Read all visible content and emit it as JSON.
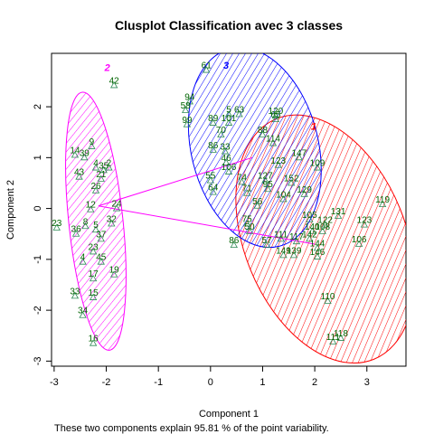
{
  "chart_data": {
    "type": "scatter",
    "title": "Clusplot Classification avec 3 classes",
    "xlabel": "Component 1",
    "ylabel": "Component 2",
    "footnote": "These two components explain 95.81 % of the point variability.",
    "xlim": [
      -3.05,
      3.75
    ],
    "ylim": [
      -3.1,
      3.05
    ],
    "x_ticks": [
      "-3",
      "-2",
      "-1",
      "0",
      "1",
      "2",
      "3"
    ],
    "y_ticks": [
      "-3",
      "-2",
      "-1",
      "0",
      "1",
      "2"
    ],
    "clusters": [
      {
        "label": "1",
        "color": "#ff0000",
        "cx": 2.2,
        "cy": -0.6,
        "rx": 1.55,
        "ry": 2.55,
        "angle": -22,
        "label_x": 1.98,
        "label_y": 1.55
      },
      {
        "label": "2",
        "color": "#ff00ff",
        "cx": -2.2,
        "cy": -0.25,
        "rx": 0.52,
        "ry": 2.55,
        "angle": -6,
        "label_x": -1.98,
        "label_y": 2.7
      },
      {
        "label": "3",
        "color": "#0000ff",
        "cx": 0.85,
        "cy": 1.2,
        "rx": 1.22,
        "ry": 2.0,
        "angle": -14,
        "label_x": 0.3,
        "label_y": 2.75
      }
    ],
    "centers": [
      {
        "x": 2.0,
        "y": -0.7
      },
      {
        "x": -2.15,
        "y": 0.05
      },
      {
        "x": 0.8,
        "y": 1.0
      }
    ],
    "points": [
      {
        "label": "61",
        "x": -0.08,
        "y": 2.72,
        "cluster": 3
      },
      {
        "label": "42",
        "x": -1.85,
        "y": 2.42,
        "cluster": 2
      },
      {
        "label": "94",
        "x": -0.4,
        "y": 2.1,
        "cluster": 3
      },
      {
        "label": "58",
        "x": -0.48,
        "y": 1.93,
        "cluster": 3
      },
      {
        "label": "5",
        "x": 0.35,
        "y": 1.85,
        "cluster": 3
      },
      {
        "label": "63",
        "x": 0.55,
        "y": 1.85,
        "cluster": 3
      },
      {
        "label": "120",
        "x": 1.25,
        "y": 1.82,
        "cluster": 3
      },
      {
        "label": "65",
        "x": 1.25,
        "y": 1.75,
        "cluster": 3
      },
      {
        "label": "99",
        "x": -0.45,
        "y": 1.65,
        "cluster": 3
      },
      {
        "label": "89",
        "x": 0.05,
        "y": 1.68,
        "cluster": 3
      },
      {
        "label": "101",
        "x": 0.35,
        "y": 1.68,
        "cluster": 3
      },
      {
        "label": "88",
        "x": 1.0,
        "y": 1.45,
        "cluster": 3
      },
      {
        "label": "70",
        "x": 0.2,
        "y": 1.45,
        "cluster": 3
      },
      {
        "label": "114",
        "x": 1.2,
        "y": 1.28,
        "cluster": 3
      },
      {
        "label": "9",
        "x": -2.28,
        "y": 1.22,
        "cluster": 2
      },
      {
        "label": "86",
        "x": 0.05,
        "y": 1.15,
        "cluster": 3
      },
      {
        "label": "33",
        "x": 0.28,
        "y": 1.12,
        "cluster": 3
      },
      {
        "label": "14",
        "x": -2.6,
        "y": 1.05,
        "cluster": 2
      },
      {
        "label": "39",
        "x": -2.42,
        "y": 1.0,
        "cluster": 2
      },
      {
        "label": "147",
        "x": 1.7,
        "y": 1.0,
        "cluster": 3
      },
      {
        "label": "46",
        "x": 0.3,
        "y": 0.9,
        "cluster": 3
      },
      {
        "label": "123",
        "x": 1.3,
        "y": 0.85,
        "cluster": 3
      },
      {
        "label": "109",
        "x": 2.05,
        "y": 0.8,
        "cluster": 1
      },
      {
        "label": "4",
        "x": -2.2,
        "y": 0.8,
        "cluster": 2
      },
      {
        "label": "2",
        "x": -1.95,
        "y": 0.8,
        "cluster": 2
      },
      {
        "label": "106",
        "x": 0.35,
        "y": 0.72,
        "cluster": 3
      },
      {
        "label": "35",
        "x": -2.05,
        "y": 0.75,
        "cluster": 2
      },
      {
        "label": "43",
        "x": -2.52,
        "y": 0.62,
        "cluster": 2
      },
      {
        "label": "21",
        "x": -2.1,
        "y": 0.58,
        "cluster": 2
      },
      {
        "label": "55",
        "x": 0.0,
        "y": 0.55,
        "cluster": 3
      },
      {
        "label": "74",
        "x": 0.6,
        "y": 0.52,
        "cluster": 3
      },
      {
        "label": "152",
        "x": 1.55,
        "y": 0.5,
        "cluster": 3
      },
      {
        "label": "127",
        "x": 1.05,
        "y": 0.55,
        "cluster": 3
      },
      {
        "label": "26",
        "x": -2.2,
        "y": 0.35,
        "cluster": 2
      },
      {
        "label": "64",
        "x": 0.05,
        "y": 0.32,
        "cluster": 3
      },
      {
        "label": "95",
        "x": 1.1,
        "y": 0.38,
        "cluster": 3
      },
      {
        "label": "129",
        "x": 1.8,
        "y": 0.28,
        "cluster": 3
      },
      {
        "label": "71",
        "x": 0.7,
        "y": 0.3,
        "cluster": 3
      },
      {
        "label": "104",
        "x": 1.4,
        "y": 0.18,
        "cluster": 3
      },
      {
        "label": "119",
        "x": 3.3,
        "y": 0.08,
        "cluster": 1
      },
      {
        "label": "24",
        "x": -1.8,
        "y": 0.0,
        "cluster": 2
      },
      {
        "label": "12",
        "x": -2.3,
        "y": -0.02,
        "cluster": 2
      },
      {
        "label": "56",
        "x": 0.9,
        "y": 0.05,
        "cluster": 3
      },
      {
        "label": "131",
        "x": 2.45,
        "y": -0.15,
        "cluster": 1
      },
      {
        "label": "105",
        "x": 1.9,
        "y": -0.22,
        "cluster": 1
      },
      {
        "label": "122",
        "x": 2.2,
        "y": -0.32,
        "cluster": 1
      },
      {
        "label": "123",
        "x": 2.95,
        "y": -0.32,
        "cluster": 1
      },
      {
        "label": "8",
        "x": -2.4,
        "y": -0.35,
        "cluster": 2
      },
      {
        "label": "32",
        "x": -1.9,
        "y": -0.3,
        "cluster": 2
      },
      {
        "label": "23",
        "x": -2.95,
        "y": -0.38,
        "cluster": 2
      },
      {
        "label": "75",
        "x": 0.7,
        "y": -0.3,
        "cluster": 3
      },
      {
        "label": "36",
        "x": -2.58,
        "y": -0.5,
        "cluster": 2
      },
      {
        "label": "5",
        "x": -2.2,
        "y": -0.42,
        "cluster": 2
      },
      {
        "label": "50",
        "x": 0.75,
        "y": -0.45,
        "cluster": 3
      },
      {
        "label": "140",
        "x": 1.95,
        "y": -0.45,
        "cluster": 1
      },
      {
        "label": "108",
        "x": 2.15,
        "y": -0.45,
        "cluster": 1
      },
      {
        "label": "142",
        "x": 1.9,
        "y": -0.6,
        "cluster": 1
      },
      {
        "label": "37",
        "x": -2.1,
        "y": -0.6,
        "cluster": 2
      },
      {
        "label": "111",
        "x": 1.35,
        "y": -0.6,
        "cluster": 1
      },
      {
        "label": "117",
        "x": 1.65,
        "y": -0.65,
        "cluster": 1
      },
      {
        "label": "106",
        "x": 2.85,
        "y": -0.7,
        "cluster": 1
      },
      {
        "label": "86",
        "x": 0.45,
        "y": -0.72,
        "cluster": 3
      },
      {
        "label": "57",
        "x": 1.08,
        "y": -0.72,
        "cluster": 3
      },
      {
        "label": "144",
        "x": 2.05,
        "y": -0.78,
        "cluster": 1
      },
      {
        "label": "23",
        "x": -2.25,
        "y": -0.85,
        "cluster": 2
      },
      {
        "label": "149",
        "x": 1.4,
        "y": -0.92,
        "cluster": 1
      },
      {
        "label": "139",
        "x": 1.6,
        "y": -0.92,
        "cluster": 1
      },
      {
        "label": "146",
        "x": 2.05,
        "y": -0.95,
        "cluster": 1
      },
      {
        "label": "4",
        "x": -2.45,
        "y": -1.05,
        "cluster": 2
      },
      {
        "label": "45",
        "x": -2.1,
        "y": -1.05,
        "cluster": 2
      },
      {
        "label": "19",
        "x": -1.85,
        "y": -1.3,
        "cluster": 2
      },
      {
        "label": "17",
        "x": -2.25,
        "y": -1.38,
        "cluster": 2
      },
      {
        "label": "33",
        "x": -2.6,
        "y": -1.72,
        "cluster": 2
      },
      {
        "label": "15",
        "x": -2.25,
        "y": -1.75,
        "cluster": 2
      },
      {
        "label": "110",
        "x": 2.25,
        "y": -1.82,
        "cluster": 1
      },
      {
        "label": "34",
        "x": -2.45,
        "y": -2.1,
        "cluster": 2
      },
      {
        "label": "118",
        "x": 2.5,
        "y": -2.55,
        "cluster": 1
      },
      {
        "label": "111",
        "x": 2.35,
        "y": -2.62,
        "cluster": 1
      },
      {
        "label": "16",
        "x": -2.25,
        "y": -2.65,
        "cluster": 2
      }
    ]
  }
}
